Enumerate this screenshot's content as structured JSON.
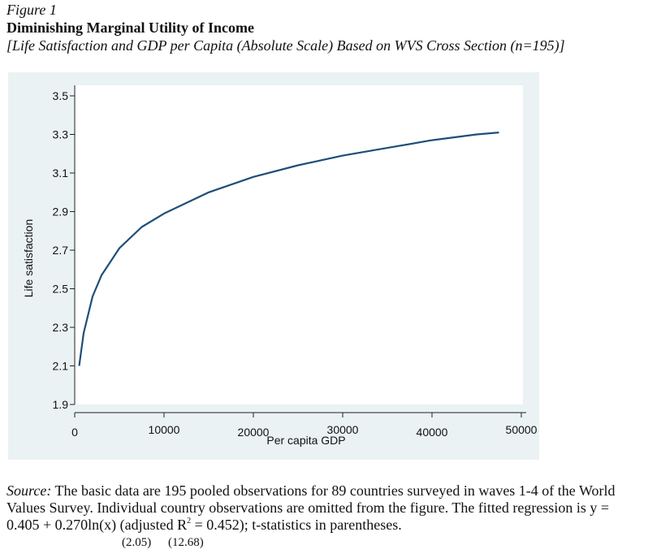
{
  "figure": {
    "label": "Figure 1",
    "title": "Diminishing Marginal Utility of Income",
    "subtitle": "[Life Satisfaction and GDP per Capita (Absolute Scale) Based on WVS Cross Section (n=195)]"
  },
  "chart_data": {
    "type": "line",
    "xlabel": "Per capita GDP",
    "ylabel": "Life satisfaction",
    "xlim": [
      0,
      50000
    ],
    "ylim": [
      1.9,
      3.5
    ],
    "xticks": [
      "0",
      "10000",
      "20000",
      "30000",
      "40000",
      "50000"
    ],
    "yticks": [
      "1.9",
      "2.1",
      "2.3",
      "2.5",
      "2.7",
      "2.9",
      "3.1",
      "3.3",
      "3.5"
    ],
    "grid": false,
    "series": [
      {
        "x": [
          500,
          1000,
          2000,
          3000,
          5000,
          7500,
          10000,
          15000,
          20000,
          25000,
          30000,
          35000,
          40000,
          45000,
          47500
        ],
        "y": [
          2.1,
          2.27,
          2.46,
          2.57,
          2.71,
          2.82,
          2.89,
          3.0,
          3.08,
          3.14,
          3.19,
          3.23,
          3.27,
          3.3,
          3.31
        ]
      }
    ]
  },
  "note": {
    "source_label": "Source:",
    "text_1": " The basic data are 195 pooled observations for 89 countries surveyed in waves 1-4 of the World Values Survey.  Individual country observations are omitted from the figure. The fitted regression is y = 0.405 + 0.270ln(x) (adjusted R",
    "sup": "2",
    "text_2": " = 0.452); t-statistics in parentheses.",
    "t_stat_1": "(2.05)",
    "t_stat_2": "(12.68)"
  }
}
